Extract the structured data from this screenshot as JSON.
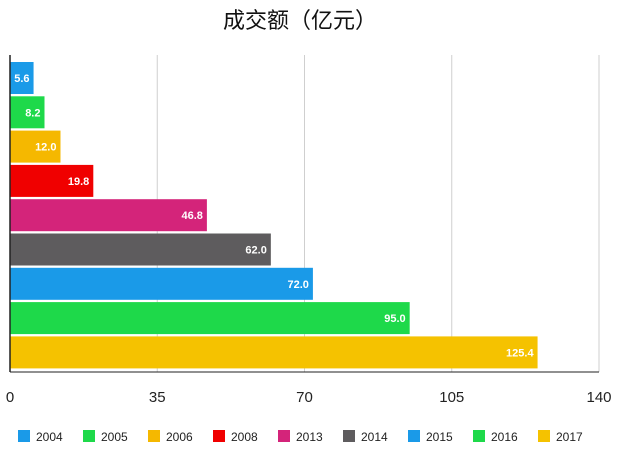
{
  "chart_data": {
    "type": "bar",
    "orientation": "horizontal",
    "title": "成交额（亿元）",
    "xlabel": "",
    "ylabel": "",
    "categories": [
      "2004",
      "2005",
      "2006",
      "2008",
      "2013",
      "2014",
      "2015",
      "2016",
      "2017"
    ],
    "values": [
      5.6,
      8.2,
      12.0,
      19.8,
      46.8,
      62.0,
      72.0,
      95.0,
      125.4
    ],
    "value_labels": [
      "5.6",
      "8.2",
      "12.0",
      "19.8",
      "46.8",
      "62.0",
      "72.0",
      "95.0",
      "125.4"
    ],
    "colors": [
      "#1a9ae8",
      "#1ed94a",
      "#f5b800",
      "#f00000",
      "#d4247a",
      "#5e5c5e",
      "#1a9ae8",
      "#1ed94a",
      "#f5c200"
    ],
    "xlim": [
      0,
      140
    ],
    "xticks": [
      0,
      35,
      70,
      105,
      140
    ],
    "xtick_labels": [
      "0",
      "35",
      "70",
      "105",
      "140"
    ],
    "grid": true,
    "legend_position": "bottom",
    "legend": [
      "2004",
      "2005",
      "2006",
      "2008",
      "2013",
      "2014",
      "2015",
      "2016",
      "2017"
    ]
  }
}
